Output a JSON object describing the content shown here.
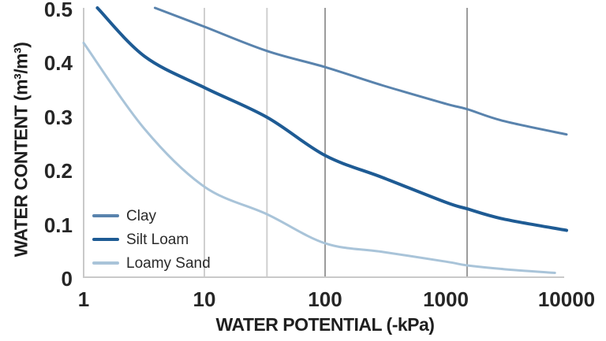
{
  "colors": {
    "background": "#ffffff",
    "axis_line": "#c9c9c9",
    "grid_light": "#cfcfcf",
    "grid_dark": "#9b9b9b",
    "text": "#262626"
  },
  "chart_data": {
    "type": "line",
    "title": "",
    "xlabel": "WATER POTENTIAL (-kPa)",
    "ylabel": "WATER CONTENT (m³/m³)",
    "x_scale": "log10",
    "x_range": [
      1,
      10000
    ],
    "x_ticks": [
      1,
      10,
      100,
      1000,
      10000
    ],
    "x_tick_labels": [
      "1",
      "10",
      "100",
      "1000",
      "10000"
    ],
    "y_range": [
      0,
      0.5
    ],
    "y_ticks": [
      0,
      0.1,
      0.2,
      0.3,
      0.4,
      0.5
    ],
    "y_tick_labels": [
      "0",
      "0.1",
      "0.2",
      "0.3",
      "0.4",
      "0.5"
    ],
    "grid": "vertical-reference-lines-only",
    "reference_lines": [
      {
        "x_kpa": 10,
        "shade": "light"
      },
      {
        "x_kpa": 33,
        "shade": "light"
      },
      {
        "x_kpa": 100,
        "shade": "dark"
      },
      {
        "x_kpa": 1500,
        "shade": "dark"
      }
    ],
    "legend_position": "inside-lower-left",
    "series": [
      {
        "name": "Clay",
        "color": "#5983ad",
        "stroke_width": 3,
        "points": [
          [
            3.9,
            0.5
          ],
          [
            10,
            0.465
          ],
          [
            33,
            0.42
          ],
          [
            100,
            0.39
          ],
          [
            300,
            0.356
          ],
          [
            1000,
            0.322
          ],
          [
            1500,
            0.312
          ],
          [
            3000,
            0.29
          ],
          [
            10000,
            0.265
          ]
        ]
      },
      {
        "name": "Silt Loam",
        "color": "#1e5b94",
        "stroke_width": 4,
        "points": [
          [
            1.3,
            0.5
          ],
          [
            3.2,
            0.41
          ],
          [
            10,
            0.352
          ],
          [
            33,
            0.297
          ],
          [
            100,
            0.226
          ],
          [
            300,
            0.185
          ],
          [
            1000,
            0.139
          ],
          [
            1500,
            0.127
          ],
          [
            3000,
            0.108
          ],
          [
            10000,
            0.087
          ]
        ]
      },
      {
        "name": "Loamy Sand",
        "color": "#a9c4d9",
        "stroke_width": 3,
        "points": [
          [
            1,
            0.435
          ],
          [
            3.2,
            0.275
          ],
          [
            10,
            0.168
          ],
          [
            33,
            0.117
          ],
          [
            100,
            0.063
          ],
          [
            300,
            0.047
          ],
          [
            1000,
            0.029
          ],
          [
            1500,
            0.022
          ],
          [
            3000,
            0.015
          ],
          [
            8000,
            0.008
          ]
        ]
      }
    ]
  },
  "layout_note": "water retention curves for three soil textures"
}
